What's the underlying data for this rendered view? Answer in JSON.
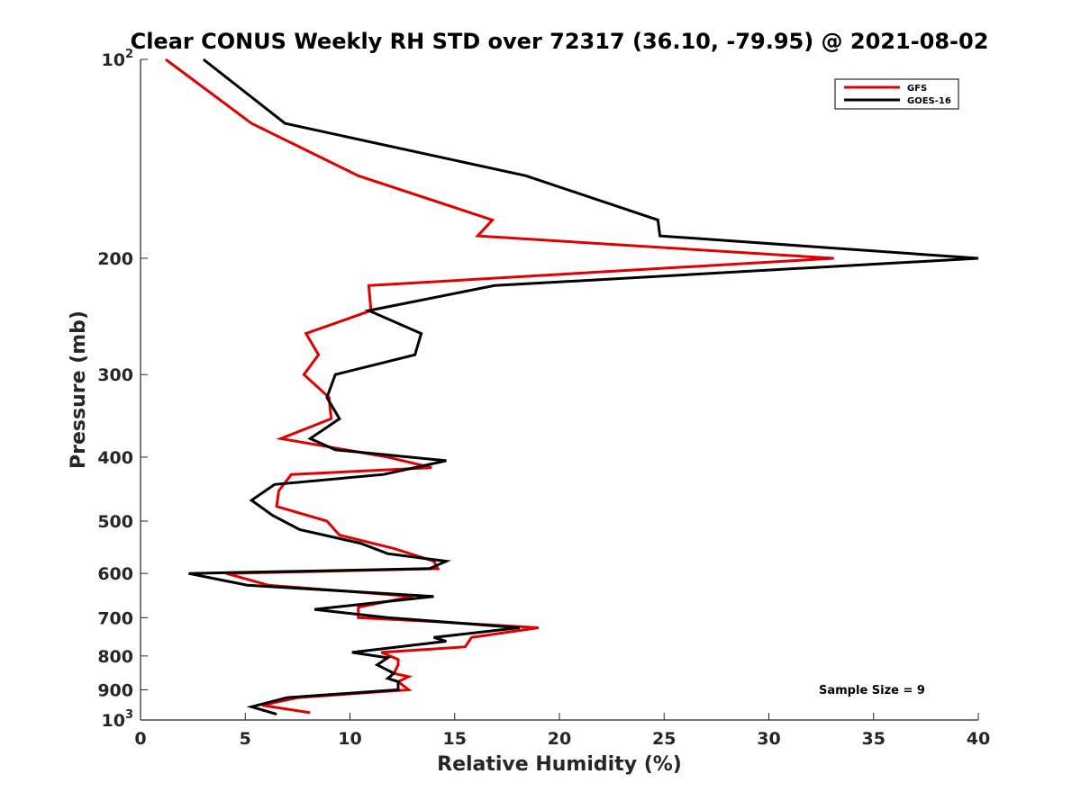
{
  "chart_data": {
    "type": "line",
    "title": "Clear CONUS Weekly RH STD over 72317 (36.10, -79.95) @ 2021-08-02",
    "xlabel": "Relative Humidity (%)",
    "ylabel": "Pressure (mb)",
    "xlim": [
      0,
      40
    ],
    "ylim": [
      100,
      1000
    ],
    "y_scale": "log",
    "y_reversed": true,
    "x_ticks": [
      "0",
      "5",
      "10",
      "15",
      "20",
      "25",
      "30",
      "35",
      "40"
    ],
    "y_ticks": [
      {
        "value": 100,
        "base": "10",
        "exp": "2"
      },
      {
        "value": 200,
        "label": "200"
      },
      {
        "value": 300,
        "label": "300"
      },
      {
        "value": 400,
        "label": "400"
      },
      {
        "value": 500,
        "label": "500"
      },
      {
        "value": 600,
        "label": "600"
      },
      {
        "value": 700,
        "label": "700"
      },
      {
        "value": 800,
        "label": "800"
      },
      {
        "value": 900,
        "label": "900"
      },
      {
        "value": 1000,
        "base": "10",
        "exp": "3"
      }
    ],
    "legend_position": "top-right",
    "grid": false,
    "annotation": "Sample Size = 9",
    "series": [
      {
        "name": "GFS",
        "color": "#e00000",
        "points": [
          [
            1.2,
            100
          ],
          [
            5.3,
            125
          ],
          [
            10.4,
            150
          ],
          [
            16.8,
            175
          ],
          [
            16.1,
            185
          ],
          [
            33.1,
            200
          ],
          [
            10.9,
            220
          ],
          [
            11.0,
            240
          ],
          [
            7.9,
            260
          ],
          [
            8.5,
            280
          ],
          [
            7.8,
            300
          ],
          [
            9.0,
            325
          ],
          [
            9.1,
            350
          ],
          [
            6.7,
            375
          ],
          [
            11.8,
            400
          ],
          [
            13.9,
            415
          ],
          [
            7.2,
            425
          ],
          [
            6.6,
            450
          ],
          [
            6.5,
            475
          ],
          [
            8.9,
            500
          ],
          [
            9.5,
            525
          ],
          [
            12.1,
            550
          ],
          [
            14.0,
            575
          ],
          [
            14.2,
            590
          ],
          [
            4.1,
            600
          ],
          [
            6.1,
            625
          ],
          [
            13.0,
            650
          ],
          [
            10.4,
            675
          ],
          [
            10.4,
            700
          ],
          [
            14.1,
            710
          ],
          [
            19.0,
            725
          ],
          [
            15.8,
            750
          ],
          [
            15.5,
            775
          ],
          [
            11.5,
            790
          ],
          [
            12.3,
            810
          ],
          [
            12.3,
            825
          ],
          [
            12.1,
            850
          ],
          [
            12.8,
            860
          ],
          [
            12.3,
            875
          ],
          [
            12.8,
            900
          ],
          [
            7.5,
            925
          ],
          [
            5.8,
            950
          ],
          [
            8.1,
            975
          ]
        ]
      },
      {
        "name": "GOES-16",
        "color": "#000000",
        "points": [
          [
            3.0,
            100
          ],
          [
            6.9,
            125
          ],
          [
            18.4,
            150
          ],
          [
            24.7,
            175
          ],
          [
            24.8,
            185
          ],
          [
            40.0,
            200
          ],
          [
            16.9,
            220
          ],
          [
            10.9,
            240
          ],
          [
            13.4,
            260
          ],
          [
            13.1,
            280
          ],
          [
            9.3,
            300
          ],
          [
            8.9,
            325
          ],
          [
            9.5,
            350
          ],
          [
            8.1,
            375
          ],
          [
            9.3,
            390
          ],
          [
            14.6,
            405
          ],
          [
            11.6,
            425
          ],
          [
            6.4,
            440
          ],
          [
            5.3,
            465
          ],
          [
            6.3,
            490
          ],
          [
            7.6,
            515
          ],
          [
            10.5,
            540
          ],
          [
            11.8,
            560
          ],
          [
            14.6,
            575
          ],
          [
            13.8,
            590
          ],
          [
            2.3,
            600
          ],
          [
            5.1,
            625
          ],
          [
            14.0,
            650
          ],
          [
            8.3,
            680
          ],
          [
            11.8,
            700
          ],
          [
            18.1,
            725
          ],
          [
            14.0,
            750
          ],
          [
            14.6,
            760
          ],
          [
            10.1,
            790
          ],
          [
            11.8,
            805
          ],
          [
            11.3,
            825
          ],
          [
            12.1,
            850
          ],
          [
            11.8,
            865
          ],
          [
            12.3,
            875
          ],
          [
            12.3,
            900
          ],
          [
            7.0,
            925
          ],
          [
            5.3,
            955
          ],
          [
            6.5,
            980
          ]
        ]
      }
    ]
  }
}
